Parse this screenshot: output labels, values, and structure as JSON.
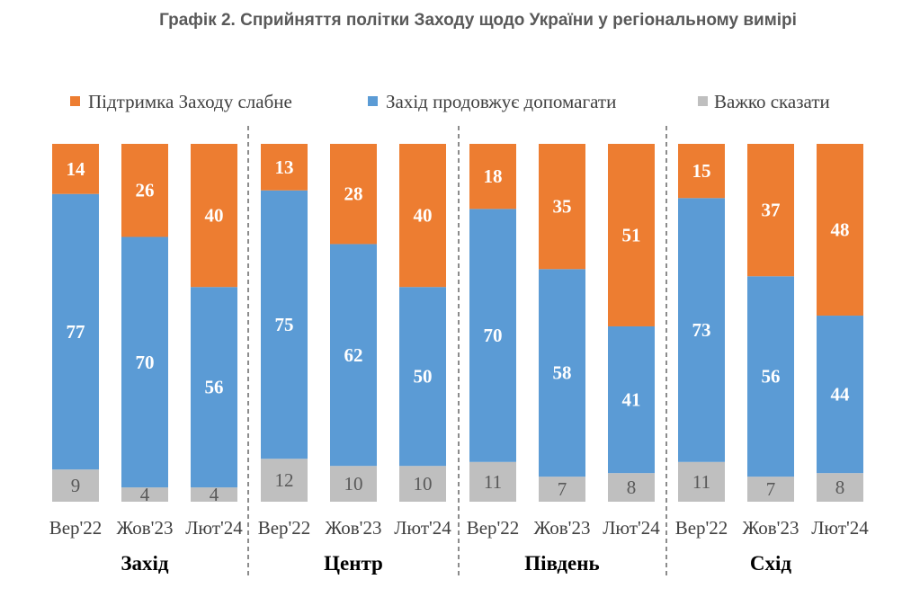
{
  "title": "Графік 2. Сприйняття політки Заходу щодо України у регіональному вимірі",
  "chart_data": {
    "type": "bar",
    "stacked": true,
    "percent_stacked": true,
    "groups": [
      {
        "name": "Захід",
        "categories": [
          "Вер'22",
          "Жов'23",
          "Лют'24"
        ],
        "series": [
          {
            "name": "Важко сказати",
            "values": [
              9,
              4,
              4
            ]
          },
          {
            "name": "Захід продовжує допомагати",
            "values": [
              77,
              70,
              56
            ]
          },
          {
            "name": "Підтримка Заходу слабне",
            "values": [
              14,
              26,
              40
            ]
          }
        ]
      },
      {
        "name": "Центр",
        "categories": [
          "Вер'22",
          "Жов'23",
          "Лют'24"
        ],
        "series": [
          {
            "name": "Важко сказати",
            "values": [
              12,
              10,
              10
            ]
          },
          {
            "name": "Захід продовжує допомагати",
            "values": [
              75,
              62,
              50
            ]
          },
          {
            "name": "Підтримка Заходу слабне",
            "values": [
              13,
              28,
              40
            ]
          }
        ]
      },
      {
        "name": "Південь",
        "categories": [
          "Вер'22",
          "Жов'23",
          "Лют'24"
        ],
        "series": [
          {
            "name": "Важко сказати",
            "values": [
              11,
              7,
              8
            ]
          },
          {
            "name": "Захід продовжує допомагати",
            "values": [
              70,
              58,
              41
            ]
          },
          {
            "name": "Підтримка Заходу слабне",
            "values": [
              18,
              35,
              51
            ]
          }
        ]
      },
      {
        "name": "Схід",
        "categories": [
          "Вер'22",
          "Жов'23",
          "Лют'24"
        ],
        "series": [
          {
            "name": "Важко сказати",
            "values": [
              11,
              7,
              8
            ]
          },
          {
            "name": "Захід продовжує допомагати",
            "values": [
              73,
              56,
              44
            ]
          },
          {
            "name": "Підтримка Заходу слабне",
            "values": [
              15,
              37,
              48
            ]
          }
        ]
      }
    ],
    "legend": {
      "placement": "top",
      "entries": [
        {
          "name": "Підтримка Заходу слабне",
          "color": "#ED7D31"
        },
        {
          "name": "Захід продовжує допомагати",
          "color": "#5B9BD5"
        },
        {
          "name": "Важко сказати",
          "color": "#BFBFBF"
        }
      ]
    },
    "colors": {
      "Підтримка Заходу слабне": "#ED7D31",
      "Захід продовжує допомагати": "#5B9BD5",
      "Важко сказати": "#BFBFBF"
    },
    "xlabel": "",
    "ylabel": "",
    "ylim": [
      0,
      100
    ],
    "grid": false,
    "group_separators": "dashed"
  }
}
